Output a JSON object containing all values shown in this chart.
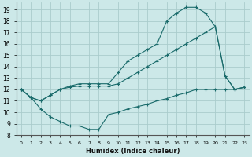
{
  "xlabel": "Humidex (Indice chaleur)",
  "bg_color": "#cce8e8",
  "grid_color": "#aacccc",
  "line_color": "#1a6b6b",
  "xlim": [
    -0.5,
    23.5
  ],
  "ylim": [
    8,
    19.6
  ],
  "yticks": [
    8,
    9,
    10,
    11,
    12,
    13,
    14,
    15,
    16,
    17,
    18,
    19
  ],
  "xticks": [
    0,
    1,
    2,
    3,
    4,
    5,
    6,
    7,
    8,
    9,
    10,
    11,
    12,
    13,
    14,
    15,
    16,
    17,
    18,
    19,
    20,
    21,
    22,
    23
  ],
  "series": [
    {
      "x": [
        0,
        1,
        2,
        3,
        4,
        5,
        6,
        7,
        8,
        9,
        10,
        11,
        12,
        13,
        14,
        15,
        16,
        17,
        18,
        19,
        20,
        21,
        22,
        23
      ],
      "y": [
        12,
        11.3,
        11.0,
        11.5,
        12.0,
        12.3,
        12.5,
        12.5,
        12.5,
        12.5,
        13.5,
        14.5,
        15.0,
        15.5,
        16.0,
        18.0,
        18.7,
        19.2,
        19.2,
        18.7,
        17.5,
        13.2,
        12.0,
        12.2
      ]
    },
    {
      "x": [
        0,
        1,
        2,
        3,
        4,
        5,
        6,
        7,
        8,
        9,
        10,
        11,
        12,
        13,
        14,
        15,
        16,
        17,
        18,
        19,
        20,
        21,
        22,
        23
      ],
      "y": [
        12,
        11.3,
        11.0,
        11.5,
        12.0,
        12.2,
        12.3,
        12.3,
        12.3,
        12.3,
        12.5,
        13.0,
        13.5,
        14.0,
        14.5,
        15.0,
        15.5,
        16.0,
        16.5,
        17.0,
        17.5,
        13.2,
        12.0,
        12.2
      ]
    },
    {
      "x": [
        0,
        1,
        2,
        3,
        4,
        5,
        6,
        7,
        8,
        9,
        10,
        11,
        12,
        13,
        14,
        15,
        16,
        17,
        18,
        19,
        20,
        21,
        22,
        23
      ],
      "y": [
        12,
        11.3,
        10.3,
        9.6,
        9.2,
        8.8,
        8.8,
        8.5,
        8.5,
        9.8,
        10.0,
        10.3,
        10.5,
        10.7,
        11.0,
        11.2,
        11.5,
        11.7,
        12.0,
        12.0,
        12.0,
        12.0,
        12.0,
        12.2
      ]
    }
  ]
}
